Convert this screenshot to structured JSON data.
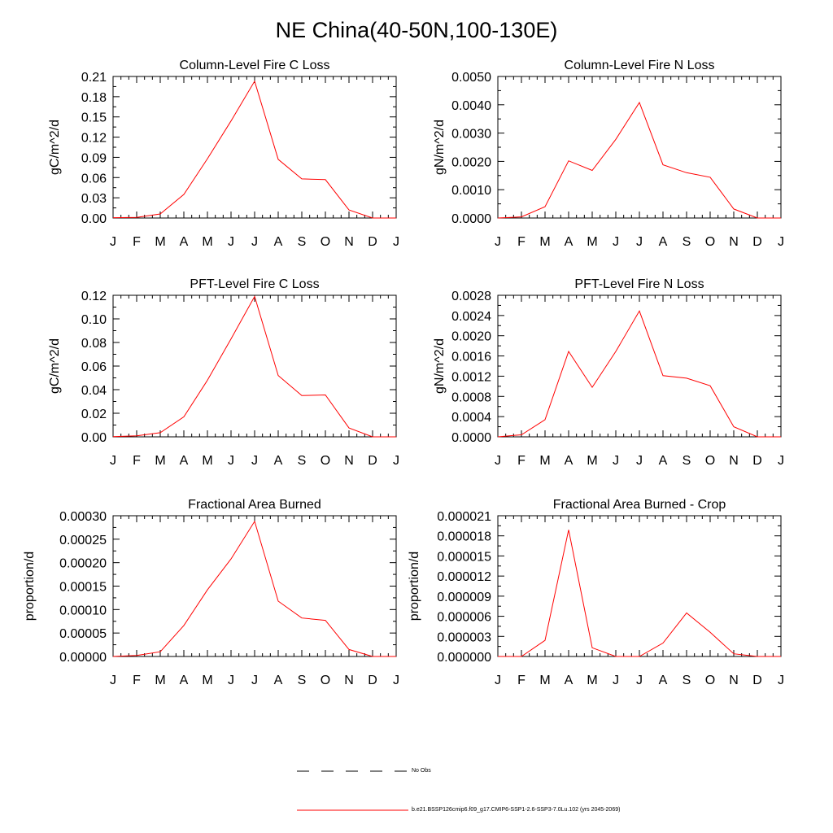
{
  "figure": {
    "title": "NE China(40-50N,100-130E)"
  },
  "legend": {
    "items": [
      {
        "label": "No Obs",
        "style": "dashed",
        "color": "#000000"
      },
      {
        "label": "b.e21.BSSP126cmip6.f09_g17.CMIP6-SSP1-2.6-SSP3-7.0Lu.102 (yrs 2045-2069)",
        "style": "solid",
        "color": "#ff0000"
      }
    ]
  },
  "line_color": "#ff0000",
  "chart_data": [
    {
      "type": "line",
      "title": "Column-Level Fire C Loss",
      "ylabel": "gC/m^2/d",
      "xticklabels": [
        "J",
        "F",
        "M",
        "A",
        "M",
        "J",
        "J",
        "A",
        "S",
        "O",
        "N",
        "D",
        "J"
      ],
      "ylim": [
        0,
        0.21
      ],
      "yticks": [
        0,
        0.03,
        0.06,
        0.09,
        0.12,
        0.15,
        0.18,
        0.21
      ],
      "yticklabels": [
        "0.00",
        "0.03",
        "0.06",
        "0.09",
        "0.12",
        "0.15",
        "0.18",
        "0.21"
      ],
      "series": [
        {
          "values": [
            0.0005,
            0.001,
            0.006,
            0.035,
            0.088,
            0.144,
            0.203,
            0.087,
            0.058,
            0.057,
            0.012,
            0.0,
            0.0
          ]
        }
      ]
    },
    {
      "type": "line",
      "title": "Column-Level Fire N Loss",
      "ylabel": "gN/m^2/d",
      "xticklabels": [
        "J",
        "F",
        "M",
        "A",
        "M",
        "J",
        "J",
        "A",
        "S",
        "O",
        "N",
        "D",
        "J"
      ],
      "ylim": [
        0,
        0.005
      ],
      "yticks": [
        0,
        0.001,
        0.002,
        0.003,
        0.004,
        0.005
      ],
      "yticklabels": [
        "0.0000",
        "0.0010",
        "0.0020",
        "0.0030",
        "0.0040",
        "0.0050"
      ],
      "series": [
        {
          "values": [
            0.0,
            4e-05,
            0.0004,
            0.00202,
            0.00168,
            0.00278,
            0.00408,
            0.00188,
            0.0016,
            0.00144,
            0.00032,
            0.0,
            0.0
          ]
        }
      ]
    },
    {
      "type": "line",
      "title": "PFT-Level Fire C Loss",
      "ylabel": "gC/m^2/d",
      "xticklabels": [
        "J",
        "F",
        "M",
        "A",
        "M",
        "J",
        "J",
        "A",
        "S",
        "O",
        "N",
        "D",
        "J"
      ],
      "ylim": [
        0,
        0.12
      ],
      "yticks": [
        0,
        0.02,
        0.04,
        0.06,
        0.08,
        0.1,
        0.12
      ],
      "yticklabels": [
        "0.00",
        "0.02",
        "0.04",
        "0.06",
        "0.08",
        "0.10",
        "0.12"
      ],
      "series": [
        {
          "values": [
            0.0002,
            0.0008,
            0.0035,
            0.017,
            0.048,
            0.083,
            0.119,
            0.052,
            0.035,
            0.0355,
            0.0075,
            0.0,
            0.0
          ]
        }
      ]
    },
    {
      "type": "line",
      "title": "PFT-Level Fire N Loss",
      "ylabel": "gN/m^2/d",
      "xticklabels": [
        "J",
        "F",
        "M",
        "A",
        "M",
        "J",
        "J",
        "A",
        "S",
        "O",
        "N",
        "D",
        "J"
      ],
      "ylim": [
        0,
        0.0028
      ],
      "yticks": [
        0,
        0.0004,
        0.0008,
        0.0012,
        0.0016,
        0.002,
        0.0024,
        0.0028
      ],
      "yticklabels": [
        "0.0000",
        "0.0004",
        "0.0008",
        "0.0012",
        "0.0016",
        "0.0020",
        "0.0024",
        "0.0028"
      ],
      "series": [
        {
          "values": [
            0.0,
            4e-05,
            0.00034,
            0.00169,
            0.00098,
            0.00169,
            0.00249,
            0.00121,
            0.00116,
            0.00101,
            0.0002,
            0.0,
            0.0
          ]
        }
      ]
    },
    {
      "type": "line",
      "title": "Fractional Area Burned",
      "ylabel": "proportion/d",
      "xticklabels": [
        "J",
        "F",
        "M",
        "A",
        "M",
        "J",
        "J",
        "A",
        "S",
        "O",
        "N",
        "D",
        "J"
      ],
      "ylim": [
        0,
        0.0003
      ],
      "yticks": [
        0,
        5e-05,
        0.0001,
        0.00015,
        0.0002,
        0.00025,
        0.0003
      ],
      "yticklabels": [
        "0.00000",
        "0.00005",
        "0.00010",
        "0.00015",
        "0.00020",
        "0.00025",
        "0.00030"
      ],
      "series": [
        {
          "values": [
            0.0,
            2e-06,
            1e-05,
            6.6e-05,
            0.000142,
            0.000208,
            0.000288,
            0.000118,
            8.2e-05,
            7.7e-05,
            1.5e-05,
            0.0,
            0.0
          ]
        }
      ]
    },
    {
      "type": "line",
      "title": "Fractional Area Burned - Crop",
      "ylabel": "proportion/d",
      "xticklabels": [
        "J",
        "F",
        "M",
        "A",
        "M",
        "J",
        "J",
        "A",
        "S",
        "O",
        "N",
        "D",
        "J"
      ],
      "ylim": [
        0,
        2.1e-05
      ],
      "yticks": [
        0,
        3e-06,
        6e-06,
        9e-06,
        1.2e-05,
        1.5e-05,
        1.8e-05,
        2.1e-05
      ],
      "yticklabels": [
        "0.000000",
        "0.000003",
        "0.000006",
        "0.000009",
        "0.000012",
        "0.000015",
        "0.000018",
        "0.000021"
      ],
      "series": [
        {
          "values": [
            0.0,
            0.0,
            2.4e-06,
            1.89e-05,
            1.3e-06,
            0.0,
            0.0,
            2e-06,
            6.5e-06,
            3.6e-06,
            4e-07,
            0.0,
            0.0
          ]
        }
      ]
    }
  ]
}
